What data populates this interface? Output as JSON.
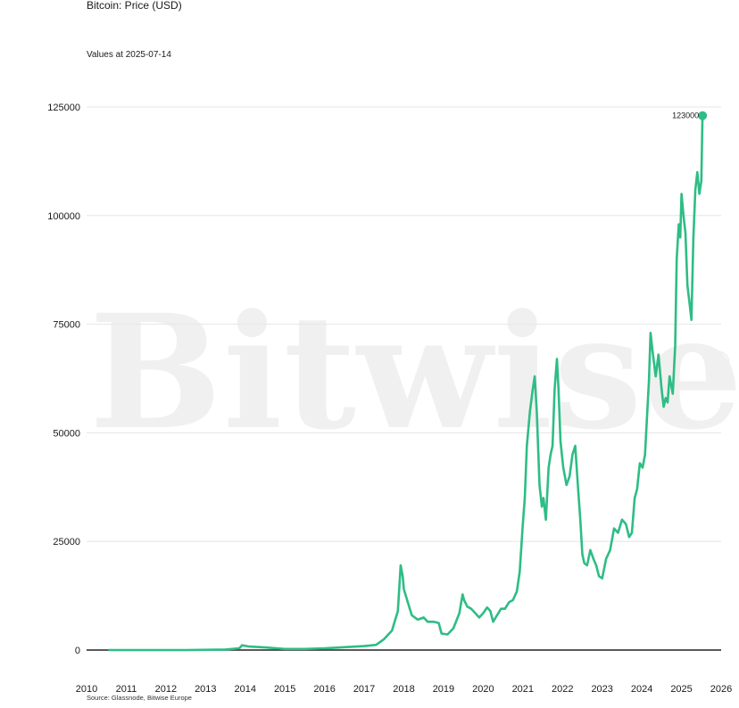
{
  "header": {
    "title": "Bitcoin: Price (USD)",
    "subtitle": "Values at 2025-07-14"
  },
  "footer": {
    "source": "Source: Glassnode, Bitwise Europe"
  },
  "watermark": {
    "text": "Bitwise",
    "mark": "®"
  },
  "chart_data": {
    "type": "line",
    "title": "Bitcoin: Price (USD)",
    "subtitle": "Values at 2025-07-14",
    "xlabel": "",
    "ylabel": "",
    "xlim": [
      2010,
      2026
    ],
    "ylim": [
      0,
      125000
    ],
    "y_ticks": [
      0,
      25000,
      50000,
      75000,
      100000,
      125000
    ],
    "y_tick_labels": [
      "0",
      "25000",
      "50000",
      "75000",
      "100000",
      "125000"
    ],
    "x_ticks": [
      2010,
      2011,
      2012,
      2013,
      2014,
      2015,
      2016,
      2017,
      2018,
      2019,
      2020,
      2021,
      2022,
      2023,
      2024,
      2025,
      2026
    ],
    "x_tick_labels": [
      "2010",
      "2011",
      "2012",
      "2013",
      "2014",
      "2015",
      "2016",
      "2017",
      "2018",
      "2019",
      "2020",
      "2021",
      "2022",
      "2023",
      "2024",
      "2025",
      "2026"
    ],
    "grid": true,
    "line_color": "#2ebd85",
    "last_value": 123000,
    "last_value_label": "123000",
    "series": [
      {
        "name": "",
        "x": [
          2010.55,
          2011.5,
          2012.5,
          2013.5,
          2013.85,
          2013.92,
          2014.1,
          2014.5,
          2015.0,
          2015.5,
          2016.0,
          2016.5,
          2017.0,
          2017.3,
          2017.5,
          2017.7,
          2017.85,
          2017.92,
          2017.97,
          2018.0,
          2018.1,
          2018.2,
          2018.35,
          2018.5,
          2018.6,
          2018.75,
          2018.88,
          2018.95,
          2019.1,
          2019.25,
          2019.4,
          2019.48,
          2019.52,
          2019.6,
          2019.7,
          2019.8,
          2019.9,
          2020.0,
          2020.1,
          2020.18,
          2020.25,
          2020.35,
          2020.45,
          2020.55,
          2020.65,
          2020.75,
          2020.85,
          2020.92,
          2021.0,
          2021.05,
          2021.1,
          2021.18,
          2021.25,
          2021.3,
          2021.35,
          2021.42,
          2021.48,
          2021.52,
          2021.58,
          2021.65,
          2021.7,
          2021.75,
          2021.8,
          2021.86,
          2021.9,
          2021.95,
          2022.02,
          2022.1,
          2022.18,
          2022.25,
          2022.32,
          2022.38,
          2022.45,
          2022.5,
          2022.55,
          2022.62,
          2022.7,
          2022.78,
          2022.85,
          2022.92,
          2023.0,
          2023.1,
          2023.2,
          2023.3,
          2023.4,
          2023.5,
          2023.6,
          2023.68,
          2023.75,
          2023.82,
          2023.88,
          2023.95,
          2024.02,
          2024.08,
          2024.12,
          2024.18,
          2024.22,
          2024.28,
          2024.35,
          2024.42,
          2024.5,
          2024.55,
          2024.6,
          2024.65,
          2024.7,
          2024.78,
          2024.84,
          2024.88,
          2024.93,
          2024.97,
          2025.0,
          2025.05,
          2025.1,
          2025.15,
          2025.2,
          2025.25,
          2025.3,
          2025.35,
          2025.4,
          2025.45,
          2025.5,
          2025.53
        ],
        "y": [
          0,
          10,
          10,
          120,
          400,
          1100,
          800,
          600,
          250,
          250,
          400,
          650,
          900,
          1200,
          2500,
          4500,
          9000,
          19500,
          17000,
          14000,
          11000,
          8000,
          7000,
          7500,
          6500,
          6500,
          6200,
          3800,
          3600,
          5000,
          8500,
          12800,
          11500,
          10000,
          9500,
          8500,
          7500,
          8500,
          9800,
          9000,
          6500,
          8000,
          9500,
          9500,
          11000,
          11500,
          13500,
          18000,
          29000,
          35000,
          47000,
          55000,
          60000,
          63000,
          55000,
          38000,
          33000,
          35000,
          30000,
          42000,
          45000,
          47000,
          60000,
          67000,
          60000,
          48000,
          42000,
          38000,
          40000,
          45000,
          47000,
          39000,
          30000,
          22000,
          20000,
          19500,
          23000,
          21000,
          19500,
          17000,
          16500,
          21000,
          23000,
          28000,
          27000,
          30000,
          29000,
          26000,
          27000,
          35000,
          37000,
          43000,
          42000,
          45000,
          52000,
          62000,
          73000,
          68000,
          63000,
          68000,
          60000,
          56000,
          58000,
          57000,
          63000,
          59000,
          70000,
          90000,
          98000,
          95000,
          105000,
          100000,
          96000,
          84000,
          80000,
          76000,
          95000,
          106000,
          110000,
          105000,
          108000,
          123000
        ]
      }
    ]
  }
}
